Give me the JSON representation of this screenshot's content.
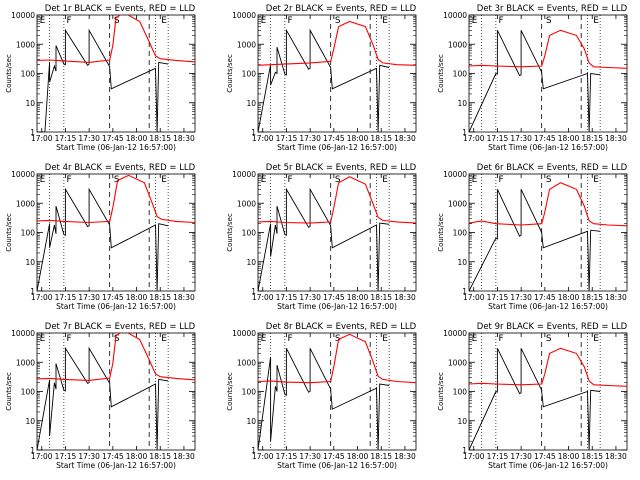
{
  "chart_data": [
    {
      "type": "line",
      "title": "Det 1r BLACK = Events, RED = LLD",
      "xlabel": "Start Time (06-Jan-12 16:57:00)",
      "ylabel": "Counts/sec",
      "x_ticks": [
        "17:00",
        "17:15",
        "17:30",
        "17:45",
        "18:00",
        "18:15",
        "18:30"
      ],
      "y_ticks": [
        "1",
        "10",
        "100",
        "1000",
        "10000"
      ],
      "ylim": [
        1,
        10000
      ],
      "y_scale": "log",
      "markers": [
        "E",
        "F",
        "S",
        "E"
      ],
      "series": [
        {
          "name": "Events",
          "color": "#000000",
          "x": [
            "16:57",
            "17:02",
            "17:05",
            "17:05",
            "17:08",
            "17:09",
            "17:09",
            "17:14",
            "17:15",
            "17:15",
            "17:29",
            "17:30",
            "17:30",
            "17:43",
            "17:43",
            "17:44",
            "18:12",
            "18:13",
            "18:14",
            "18:20"
          ],
          "values": [
            1,
            1,
            250,
            50,
            180,
            120,
            900,
            210,
            200,
            3000,
            190,
            210,
            3000,
            170,
            160,
            30,
            150,
            1,
            240,
            210
          ]
        },
        {
          "name": "LLD",
          "color": "#ff0000",
          "x": [
            "16:57",
            "17:05",
            "17:14",
            "17:30",
            "17:43",
            "17:45",
            "17:47",
            "17:52",
            "18:02",
            "18:08",
            "18:12",
            "18:15",
            "18:25",
            "18:37"
          ],
          "values": [
            280,
            290,
            270,
            240,
            290,
            900,
            8000,
            12000,
            6000,
            1200,
            400,
            320,
            280,
            250
          ]
        }
      ]
    },
    {
      "type": "line",
      "title": "Det 2r BLACK = Events, RED = LLD",
      "xlabel": "Start Time (06-Jan-12 16:57:00)",
      "ylabel": "Counts/sec",
      "x_ticks": [
        "17:00",
        "17:15",
        "17:30",
        "17:45",
        "18:00",
        "18:15",
        "18:30"
      ],
      "y_ticks": [
        "1",
        "10",
        "100",
        "1000",
        "10000"
      ],
      "ylim": [
        1,
        10000
      ],
      "y_scale": "log",
      "markers": [
        "E",
        "F",
        "S",
        "E"
      ],
      "series": [
        {
          "name": "Events",
          "color": "#000000",
          "x": [
            "16:57",
            "17:05",
            "17:05",
            "17:08",
            "17:09",
            "17:09",
            "17:14",
            "17:15",
            "17:15",
            "17:29",
            "17:30",
            "17:30",
            "17:43",
            "17:43",
            "17:44",
            "18:12",
            "18:13",
            "18:14",
            "18:20"
          ],
          "values": [
            1,
            200,
            40,
            110,
            100,
            800,
            95,
            90,
            3000,
            140,
            150,
            3000,
            160,
            150,
            30,
            150,
            1,
            190,
            160
          ]
        },
        {
          "name": "LLD",
          "color": "#ff0000",
          "x": [
            "16:57",
            "17:05",
            "17:14",
            "17:30",
            "17:43",
            "17:45",
            "17:48",
            "17:55",
            "18:05",
            "18:10",
            "18:13",
            "18:16",
            "18:25",
            "18:37"
          ],
          "values": [
            190,
            200,
            210,
            230,
            260,
            700,
            4000,
            6000,
            4000,
            900,
            300,
            230,
            200,
            190
          ]
        }
      ]
    },
    {
      "type": "line",
      "title": "Det 3r BLACK = Events, RED = LLD",
      "xlabel": "Start Time (06-Jan-12 16:57:00)",
      "ylabel": "Counts/sec",
      "x_ticks": [
        "17:00",
        "17:15",
        "17:30",
        "17:45",
        "18:00",
        "18:15",
        "18:30"
      ],
      "y_ticks": [
        "1",
        "10",
        "100",
        "1000",
        "10000"
      ],
      "ylim": [
        1,
        10000
      ],
      "y_scale": "log",
      "markers": [
        "E",
        "F",
        "S",
        "E"
      ],
      "series": [
        {
          "name": "Events",
          "color": "#000000",
          "x": [
            "16:57",
            "17:14",
            "17:15",
            "17:15",
            "17:29",
            "17:30",
            "17:30",
            "17:43",
            "17:43",
            "17:44",
            "18:12",
            "18:13",
            "18:14",
            "18:20"
          ],
          "values": [
            1,
            100,
            95,
            3000,
            85,
            90,
            3000,
            110,
            100,
            30,
            100,
            1,
            100,
            90
          ]
        },
        {
          "name": "LLD",
          "color": "#ff0000",
          "x": [
            "16:57",
            "17:05",
            "17:14",
            "17:30",
            "17:43",
            "17:45",
            "17:48",
            "17:55",
            "18:05",
            "18:10",
            "18:13",
            "18:16",
            "18:25",
            "18:37"
          ],
          "values": [
            180,
            190,
            180,
            170,
            180,
            400,
            2000,
            3000,
            2000,
            700,
            230,
            170,
            160,
            150
          ]
        }
      ]
    },
    {
      "type": "line",
      "title": "Det 4r BLACK = Events, RED = LLD",
      "xlabel": "Start Time (06-Jan-12 16:57:00)",
      "ylabel": "Counts/sec",
      "x_ticks": [
        "17:00",
        "17:15",
        "17:30",
        "17:45",
        "18:00",
        "18:15",
        "18:30"
      ],
      "y_ticks": [
        "1",
        "10",
        "100",
        "1000",
        "10000"
      ],
      "ylim": [
        1,
        10000
      ],
      "y_scale": "log",
      "markers": [
        "E",
        "F",
        "S",
        "E"
      ],
      "series": [
        {
          "name": "Events",
          "color": "#000000",
          "x": [
            "16:57",
            "17:05",
            "17:05",
            "17:08",
            "17:09",
            "17:09",
            "17:14",
            "17:15",
            "17:15",
            "17:29",
            "17:30",
            "17:30",
            "17:43",
            "17:43",
            "17:44",
            "18:12",
            "18:13",
            "18:14",
            "18:20"
          ],
          "values": [
            1,
            200,
            30,
            180,
            90,
            800,
            85,
            80,
            3000,
            160,
            170,
            3000,
            180,
            170,
            30,
            180,
            1,
            200,
            170
          ]
        },
        {
          "name": "LLD",
          "color": "#ff0000",
          "x": [
            "16:57",
            "17:05",
            "17:14",
            "17:30",
            "17:43",
            "17:45",
            "17:48",
            "17:55",
            "18:05",
            "18:10",
            "18:13",
            "18:16",
            "18:25",
            "18:37"
          ],
          "values": [
            250,
            260,
            240,
            220,
            240,
            700,
            6000,
            9000,
            5000,
            1000,
            350,
            280,
            240,
            220
          ]
        }
      ]
    },
    {
      "type": "line",
      "title": "Det 5r BLACK = Events, RED = LLD",
      "xlabel": "Start Time (06-Jan-12 16:57:00)",
      "ylabel": "Counts/sec",
      "x_ticks": [
        "17:00",
        "17:15",
        "17:30",
        "17:45",
        "18:00",
        "18:15",
        "18:30"
      ],
      "y_ticks": [
        "1",
        "10",
        "100",
        "1000",
        "10000"
      ],
      "ylim": [
        1,
        10000
      ],
      "y_scale": "log",
      "markers": [
        "E",
        "F",
        "S",
        "E"
      ],
      "series": [
        {
          "name": "Events",
          "color": "#000000",
          "x": [
            "16:57",
            "17:05",
            "17:05",
            "17:08",
            "17:09",
            "17:09",
            "17:14",
            "17:15",
            "17:15",
            "17:29",
            "17:30",
            "17:30",
            "17:43",
            "17:43",
            "17:44",
            "18:12",
            "18:13",
            "18:14",
            "18:20"
          ],
          "values": [
            1,
            200,
            15,
            180,
            90,
            800,
            85,
            80,
            3000,
            150,
            160,
            3000,
            170,
            160,
            30,
            180,
            1,
            210,
            190
          ]
        },
        {
          "name": "LLD",
          "color": "#ff0000",
          "x": [
            "16:57",
            "17:05",
            "17:14",
            "17:30",
            "17:43",
            "17:45",
            "17:48",
            "17:55",
            "18:05",
            "18:10",
            "18:13",
            "18:16",
            "18:25",
            "18:37"
          ],
          "values": [
            230,
            240,
            220,
            210,
            230,
            700,
            5000,
            8000,
            4500,
            900,
            330,
            260,
            230,
            210
          ]
        }
      ]
    },
    {
      "type": "line",
      "title": "Det 6r BLACK = Events, RED = LLD",
      "xlabel": "Start Time (06-Jan-12 16:57:00)",
      "ylabel": "Counts/sec",
      "x_ticks": [
        "17:00",
        "17:15",
        "17:30",
        "17:45",
        "18:00",
        "18:15",
        "18:30"
      ],
      "y_ticks": [
        "1",
        "10",
        "100",
        "1000",
        "10000"
      ],
      "ylim": [
        1,
        10000
      ],
      "y_scale": "log",
      "markers": [
        "E",
        "F",
        "S",
        "E"
      ],
      "series": [
        {
          "name": "Events",
          "color": "#000000",
          "x": [
            "16:57",
            "17:14",
            "17:15",
            "17:15",
            "17:29",
            "17:30",
            "17:30",
            "17:43",
            "17:43",
            "17:44",
            "18:12",
            "18:13",
            "18:14",
            "18:20"
          ],
          "values": [
            1,
            65,
            60,
            3000,
            75,
            80,
            3000,
            100,
            95,
            30,
            110,
            1,
            120,
            110
          ]
        },
        {
          "name": "LLD",
          "color": "#ff0000",
          "x": [
            "16:57",
            "17:05",
            "17:14",
            "17:30",
            "17:43",
            "17:45",
            "17:48",
            "17:55",
            "18:05",
            "18:10",
            "18:13",
            "18:16",
            "18:25",
            "18:37"
          ],
          "values": [
            210,
            250,
            200,
            180,
            200,
            500,
            3000,
            5000,
            3000,
            800,
            250,
            200,
            180,
            170
          ]
        }
      ]
    },
    {
      "type": "line",
      "title": "Det 7r BLACK = Events, RED = LLD",
      "xlabel": "Start Time (06-Jan-12 16:57:00)",
      "ylabel": "Counts/sec",
      "x_ticks": [
        "17:00",
        "17:15",
        "17:30",
        "17:45",
        "18:00",
        "18:15",
        "18:30"
      ],
      "y_ticks": [
        "1",
        "10",
        "100",
        "1000",
        "10000"
      ],
      "ylim": [
        1,
        10000
      ],
      "y_scale": "log",
      "markers": [
        "E",
        "F",
        "S",
        "E"
      ],
      "series": [
        {
          "name": "Events",
          "color": "#000000",
          "x": [
            "16:57",
            "17:05",
            "17:05",
            "17:08",
            "17:09",
            "17:09",
            "17:14",
            "17:15",
            "17:15",
            "17:29",
            "17:30",
            "17:30",
            "17:43",
            "17:43",
            "17:44",
            "18:12",
            "18:13",
            "18:14",
            "18:20"
          ],
          "values": [
            1,
            250,
            3,
            200,
            120,
            900,
            110,
            105,
            3000,
            190,
            200,
            3000,
            190,
            180,
            30,
            180,
            1,
            260,
            230
          ]
        },
        {
          "name": "LLD",
          "color": "#ff0000",
          "x": [
            "16:57",
            "17:05",
            "17:14",
            "17:30",
            "17:43",
            "17:45",
            "17:47",
            "17:52",
            "18:02",
            "18:08",
            "18:12",
            "18:15",
            "18:25",
            "18:37"
          ],
          "values": [
            270,
            280,
            260,
            240,
            290,
            900,
            8000,
            12000,
            6000,
            1200,
            400,
            320,
            280,
            250
          ]
        }
      ]
    },
    {
      "type": "line",
      "title": "Det 8r BLACK = Events, RED = LLD",
      "xlabel": "Start Time (06-Jan-12 16:57:00)",
      "ylabel": "Counts/sec",
      "x_ticks": [
        "17:00",
        "17:15",
        "17:30",
        "17:45",
        "18:00",
        "18:15",
        "18:30"
      ],
      "y_ticks": [
        "1",
        "10",
        "100",
        "1000",
        "10000"
      ],
      "ylim": [
        1,
        10000
      ],
      "y_scale": "log",
      "markers": [
        "E",
        "F",
        "S",
        "E"
      ],
      "series": [
        {
          "name": "Events",
          "color": "#000000",
          "x": [
            "16:57",
            "17:05",
            "17:05",
            "17:08",
            "17:09",
            "17:09",
            "17:14",
            "17:15",
            "17:15",
            "17:29",
            "17:30",
            "17:30",
            "17:43",
            "17:43",
            "17:44",
            "18:12",
            "18:13",
            "18:14",
            "18:20"
          ],
          "values": [
            1,
            1500,
            2,
            150,
            100,
            800,
            80,
            75,
            3000,
            95,
            100,
            3000,
            120,
            110,
            25,
            130,
            1,
            180,
            160
          ]
        },
        {
          "name": "LLD",
          "color": "#ff0000",
          "x": [
            "16:57",
            "17:05",
            "17:14",
            "17:30",
            "17:43",
            "17:45",
            "17:48",
            "17:55",
            "18:05",
            "18:10",
            "18:13",
            "18:16",
            "18:25",
            "18:37"
          ],
          "values": [
            220,
            230,
            210,
            200,
            220,
            700,
            6000,
            9000,
            5000,
            1000,
            330,
            260,
            220,
            200
          ]
        }
      ]
    },
    {
      "type": "line",
      "title": "Det 9r BLACK = Events, RED = LLD",
      "xlabel": "Start Time (06-Jan-12 16:57:00)",
      "ylabel": "Counts/sec",
      "x_ticks": [
        "17:00",
        "17:15",
        "17:30",
        "17:45",
        "18:00",
        "18:15",
        "18:30"
      ],
      "y_ticks": [
        "1",
        "10",
        "100",
        "1000",
        "10000"
      ],
      "ylim": [
        1,
        10000
      ],
      "y_scale": "log",
      "markers": [
        "E",
        "F",
        "S",
        "E"
      ],
      "series": [
        {
          "name": "Events",
          "color": "#000000",
          "x": [
            "16:57",
            "17:14",
            "17:15",
            "17:15",
            "17:29",
            "17:30",
            "17:30",
            "17:43",
            "17:43",
            "17:44",
            "18:12",
            "18:13",
            "18:14",
            "18:20"
          ],
          "values": [
            1,
            100,
            95,
            3000,
            85,
            90,
            3000,
            110,
            100,
            30,
            100,
            1,
            110,
            100
          ]
        },
        {
          "name": "LLD",
          "color": "#ff0000",
          "x": [
            "16:57",
            "17:05",
            "17:14",
            "17:30",
            "17:43",
            "17:45",
            "17:48",
            "17:55",
            "18:05",
            "18:10",
            "18:13",
            "18:16",
            "18:25",
            "18:37"
          ],
          "values": [
            180,
            190,
            180,
            170,
            180,
            400,
            2000,
            3000,
            2000,
            700,
            230,
            170,
            160,
            150
          ]
        }
      ]
    }
  ]
}
